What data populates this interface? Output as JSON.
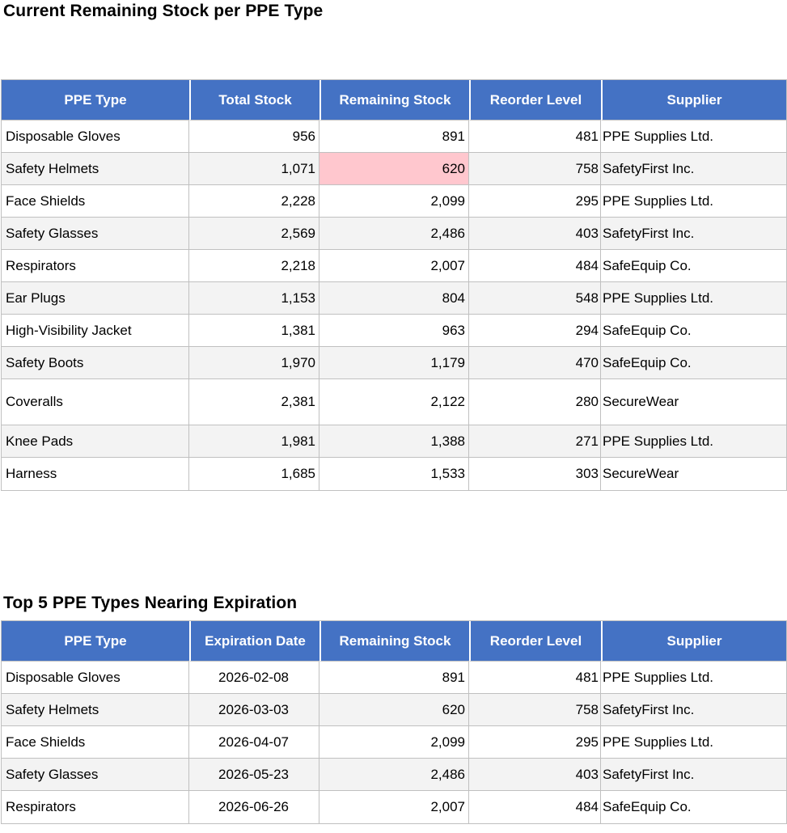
{
  "report": {
    "sections": [
      {
        "title": "Current Remaining Stock per PPE Type",
        "columns": [
          "PPE Type",
          "Total Stock",
          "Remaining Stock",
          "Reorder Level",
          "Supplier"
        ],
        "rows": [
          [
            "Disposable Gloves",
            "956",
            "891",
            "481",
            "PPE Supplies Ltd."
          ],
          [
            "Safety Helmets",
            "1,071",
            "620",
            "758",
            "SafetyFirst Inc."
          ],
          [
            "Face Shields",
            "2,228",
            "2,099",
            "295",
            "PPE Supplies Ltd."
          ],
          [
            "Safety Glasses",
            "2,569",
            "2,486",
            "403",
            "SafetyFirst Inc."
          ],
          [
            "Respirators",
            "2,218",
            "2,007",
            "484",
            "SafeEquip Co."
          ],
          [
            "Ear Plugs",
            "1,153",
            "804",
            "548",
            "PPE Supplies Ltd."
          ],
          [
            "High-Visibility Jacket",
            "1,381",
            "963",
            "294",
            "SafeEquip Co."
          ],
          [
            "Safety Boots",
            "1,970",
            "1,179",
            "470",
            "SafeEquip Co."
          ],
          [
            "Coveralls",
            "2,381",
            "2,122",
            "280",
            "SecureWear"
          ],
          [
            "Knee Pads",
            "1,981",
            "1,388",
            "271",
            "PPE Supplies Ltd."
          ],
          [
            "Harness",
            "1,685",
            "1,533",
            "303",
            "SecureWear"
          ]
        ],
        "highlight_cell": {
          "row_index": 1,
          "col_index": 2,
          "color": "#FFC7CE"
        }
      },
      {
        "title": "Top 5 PPE Types Nearing Expiration",
        "columns": [
          "PPE Type",
          "Expiration Date",
          "Remaining Stock",
          "Reorder Level",
          "Supplier"
        ],
        "rows": [
          [
            "Disposable Gloves",
            "2026-02-08",
            "891",
            "481",
            "PPE Supplies Ltd."
          ],
          [
            "Safety Helmets",
            "2026-03-03",
            "620",
            "758",
            "SafetyFirst Inc."
          ],
          [
            "Face Shields",
            "2026-04-07",
            "2,099",
            "295",
            "PPE Supplies Ltd."
          ],
          [
            "Safety Glasses",
            "2026-05-23",
            "2,486",
            "403",
            "SafetyFirst Inc."
          ],
          [
            "Respirators",
            "2026-06-26",
            "2,007",
            "484",
            "SafeEquip Co."
          ]
        ]
      }
    ],
    "colors": {
      "header_bg": "#4472C4",
      "header_text": "#FFFFFF",
      "stripe_bg": "#F3F3F3",
      "grid": "#C0C0C0",
      "highlight_bg": "#FFC7CE"
    }
  }
}
